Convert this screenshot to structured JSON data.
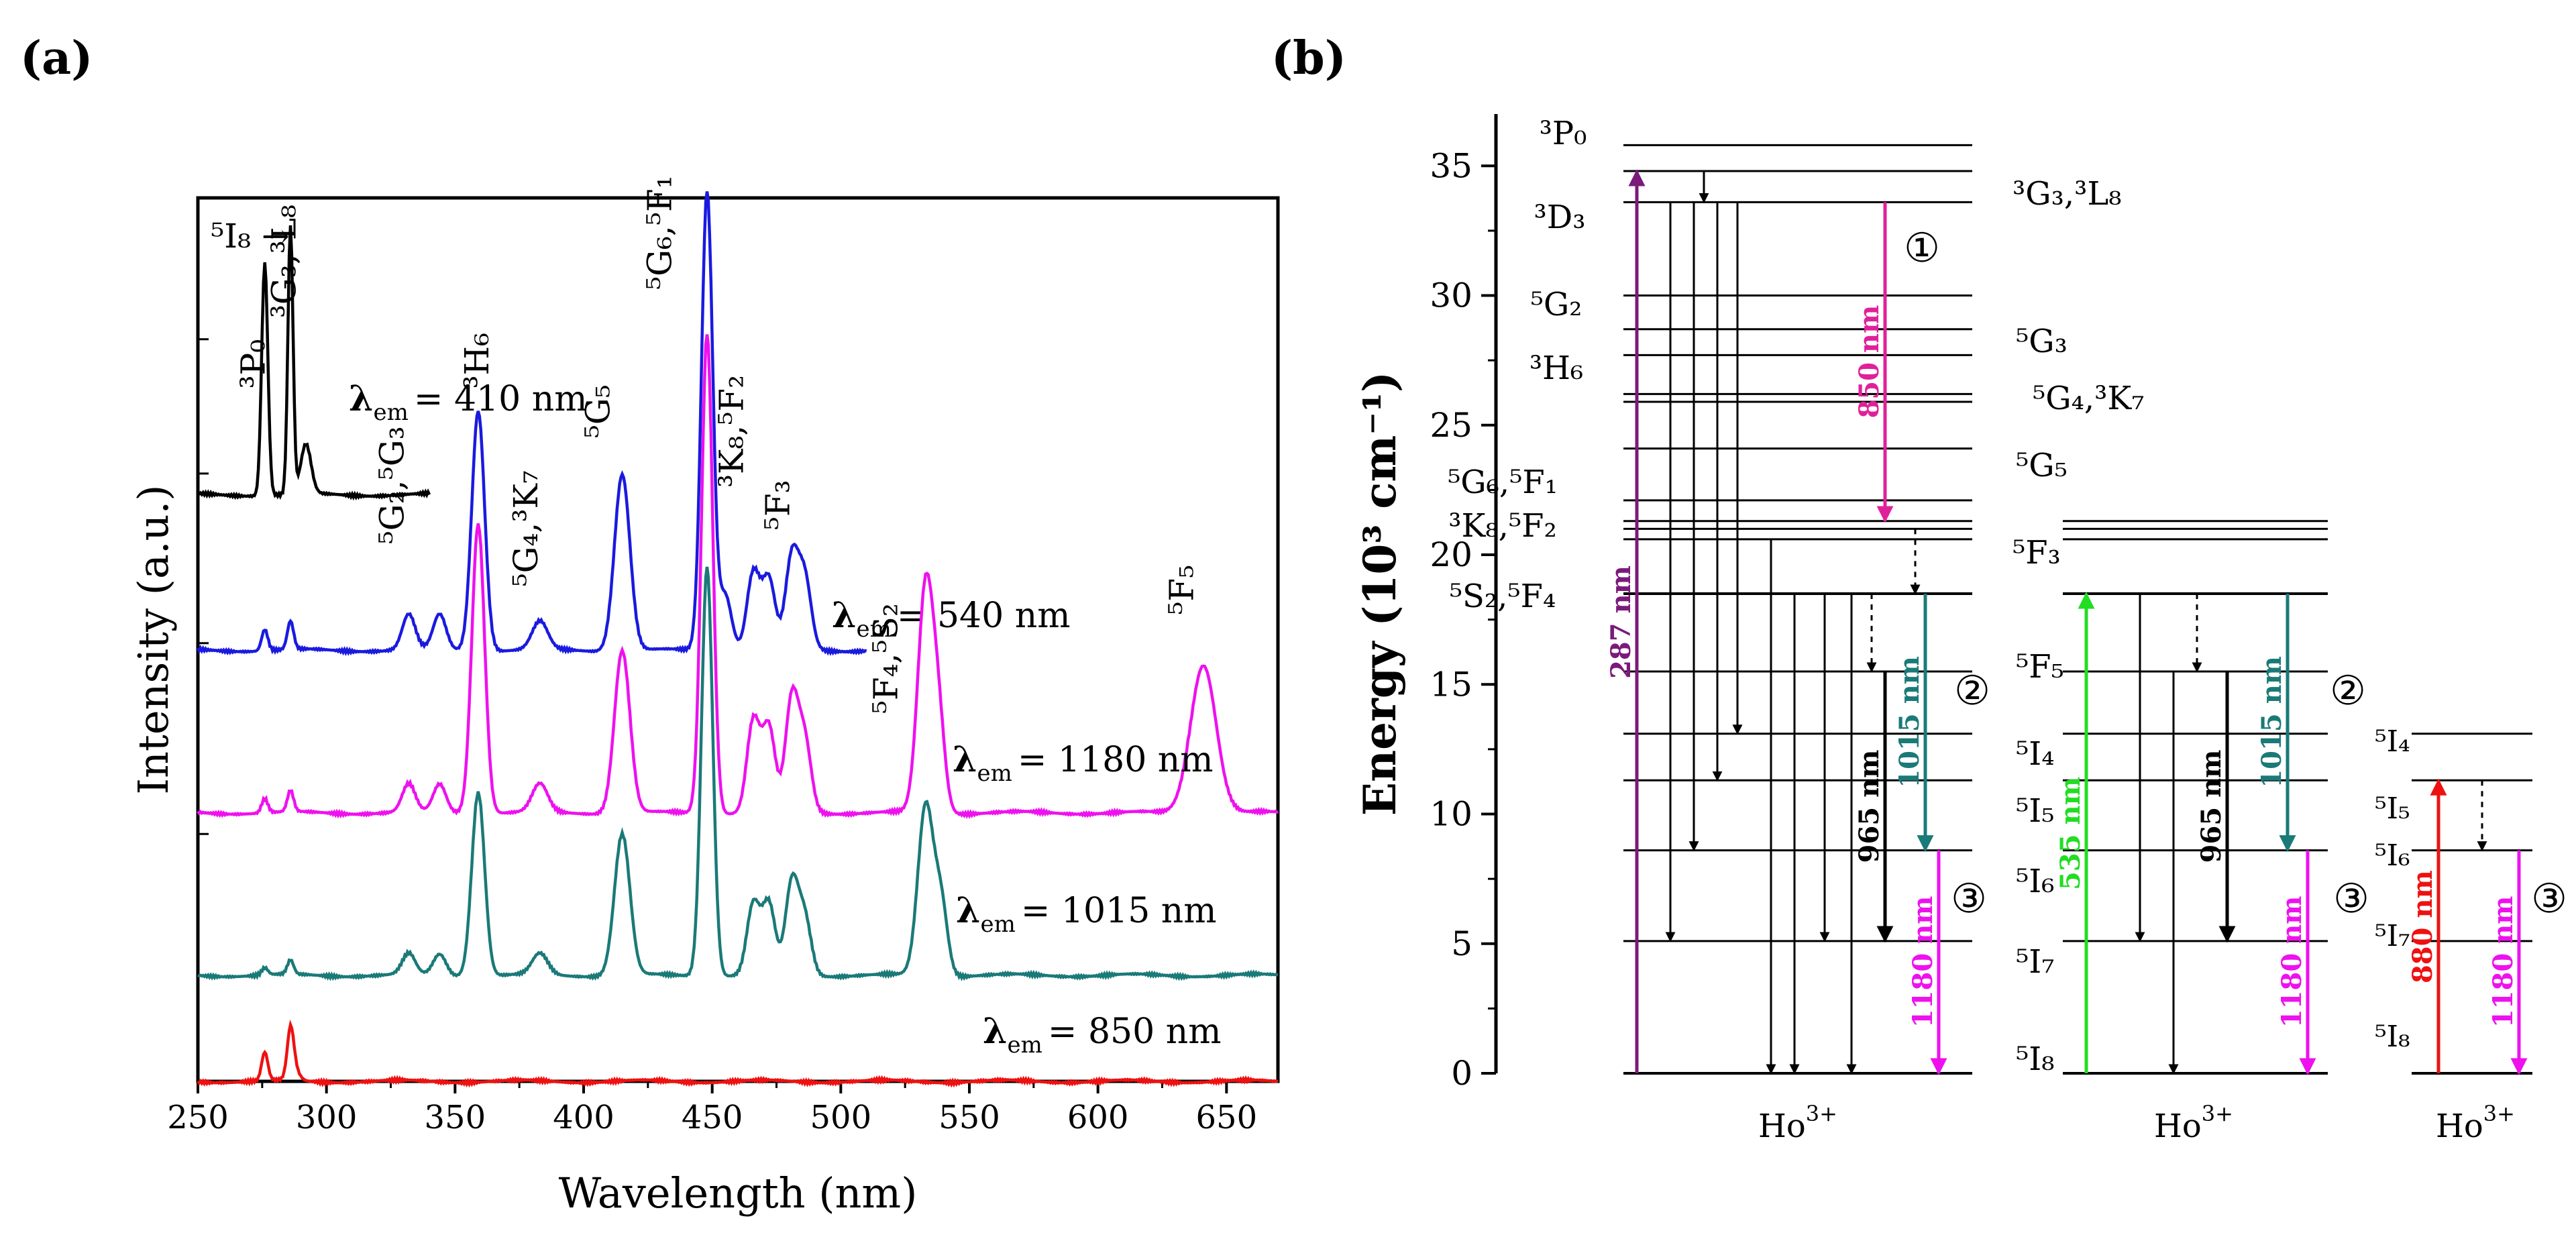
{
  "panel_a_label": "(a)",
  "panel_b_label": "(b)",
  "chart_data": [
    {
      "type": "line",
      "panel": "(a)",
      "title": "",
      "xlabel": "Wavelength (nm)",
      "ylabel": "Intensity (a.u.)",
      "xlim": [
        250,
        670
      ],
      "x_ticks": [
        "250",
        "300",
        "350",
        "400",
        "450",
        "500",
        "550",
        "600",
        "650"
      ],
      "series": [
        {
          "name": "λem = 410 nm",
          "label_main": "λ",
          "label_sub": "em",
          "label_rest": "= 410 nm",
          "color": "#000000",
          "offset": 0.83,
          "x_end": 340,
          "peaks": [
            [
              276,
              0.33,
              1.2
            ],
            [
              286,
              0.38,
              1.0
            ],
            [
              292,
              0.07,
              2.0
            ]
          ]
        },
        {
          "name": "λem = 540 nm",
          "label_main": "λ",
          "label_sub": "em",
          "label_rest": "= 540 nm",
          "color": "#1a1adf",
          "offset": 0.61,
          "x_end": 510,
          "peaks": [
            [
              276,
              0.03,
              1.2
            ],
            [
              286,
              0.04,
              1.2
            ],
            [
              332,
              0.05,
              2.5
            ],
            [
              344,
              0.05,
              2.5
            ],
            [
              359,
              0.34,
              2.5
            ],
            [
              383,
              0.04,
              3
            ],
            [
              415,
              0.25,
              3
            ],
            [
              448,
              0.65,
              2.2
            ],
            [
              455,
              0.08,
              2.5
            ],
            [
              466,
              0.11,
              2.5
            ],
            [
              472,
              0.1,
              2.5
            ],
            [
              481,
              0.13,
              2.5
            ],
            [
              486,
              0.1,
              2.5
            ]
          ]
        },
        {
          "name": "λem = 1180 nm",
          "label_main": "λ",
          "label_sub": "em",
          "label_rest": "= 1180 nm",
          "color": "#ee11ee",
          "offset": 0.38,
          "x_end": 670,
          "peaks": [
            [
              276,
              0.02,
              1.2
            ],
            [
              286,
              0.03,
              1.2
            ],
            [
              332,
              0.04,
              2.5
            ],
            [
              344,
              0.04,
              2.5
            ],
            [
              359,
              0.41,
              2.5
            ],
            [
              383,
              0.04,
              3
            ],
            [
              415,
              0.23,
              3
            ],
            [
              448,
              0.68,
              2.2
            ],
            [
              466,
              0.13,
              2.5
            ],
            [
              472,
              0.12,
              2.5
            ],
            [
              481,
              0.16,
              2.5
            ],
            [
              486,
              0.1,
              2.5
            ],
            [
              533,
              0.32,
              3
            ],
            [
              538,
              0.12,
              2.5
            ],
            [
              641,
              0.21,
              5
            ]
          ]
        },
        {
          "name": "λem = 1015 nm",
          "label_main": "λ",
          "label_sub": "em",
          "label_rest": "= 1015 nm",
          "color": "#1a7a78",
          "offset": 0.15,
          "x_end": 670,
          "peaks": [
            [
              276,
              0.01,
              1.2
            ],
            [
              286,
              0.02,
              1.2
            ],
            [
              332,
              0.03,
              2.5
            ],
            [
              344,
              0.03,
              2.5
            ],
            [
              359,
              0.26,
              2.5
            ],
            [
              383,
              0.03,
              3
            ],
            [
              415,
              0.2,
              3
            ],
            [
              448,
              0.58,
              2.2
            ],
            [
              466,
              0.1,
              2.5
            ],
            [
              472,
              0.1,
              2.5
            ],
            [
              481,
              0.13,
              2.5
            ],
            [
              486,
              0.08,
              2.5
            ],
            [
              533,
              0.24,
              3
            ],
            [
              539,
              0.1,
              2.5
            ]
          ]
        },
        {
          "name": "λem = 850 nm",
          "label_main": "λ",
          "label_sub": "em",
          "label_rest": "= 850 nm",
          "color": "#ee1111",
          "offset": 0.0,
          "x_end": 670,
          "peaks": [
            [
              276,
              0.04,
              1.2
            ],
            [
              286,
              0.06,
              1.2
            ],
            [
              287,
              0.02,
              2.0
            ]
          ]
        }
      ],
      "annotations": [
        {
          "text": "⁵I₈ →",
          "x": 255,
          "y": 1.18
        },
        {
          "text": "³P₀",
          "x": 276,
          "y": 0.98
        },
        {
          "text": "³G₃,³L₈",
          "x": 288,
          "y": 1.08
        },
        {
          "text": "⁵G₂,⁵G₃",
          "x": 330,
          "y": 0.76
        },
        {
          "text": "³H₆",
          "x": 363,
          "y": 0.98
        },
        {
          "text": "⁵G₄,³K₇",
          "x": 382,
          "y": 0.7
        },
        {
          "text": "⁵G₅",
          "x": 410,
          "y": 0.91
        },
        {
          "text": "⁵G₆,⁵F₁",
          "x": 434,
          "y": 1.12
        },
        {
          "text": "³K₈,⁵F₂",
          "x": 462,
          "y": 0.84
        },
        {
          "text": "⁵F₃",
          "x": 480,
          "y": 0.78
        },
        {
          "text": "⁵F₄,⁵S₂",
          "x": 522,
          "y": 0.52
        },
        {
          "text": "⁵F₅",
          "x": 637,
          "y": 0.66
        }
      ]
    },
    {
      "type": "energy-level-diagram",
      "panel": "(b)",
      "ylabel": "Energy (10³ cm⁻¹)",
      "ylim": [
        0,
        37
      ],
      "y_ticks": [
        "0",
        "5",
        "10",
        "15",
        "20",
        "25",
        "30",
        "35"
      ],
      "ion_label": "Ho",
      "ion_charge": "3+",
      "levels": [
        0,
        5.1,
        8.6,
        11.3,
        13.1,
        15.5,
        18.5,
        20.6,
        21.0,
        21.3,
        22.1,
        24.1,
        25.9,
        26.2,
        27.7,
        28.7,
        30.0,
        33.6,
        34.8,
        35.8
      ],
      "level_labels_left": [
        "³P₀",
        "³D₃",
        "⁵G₂",
        "³H₆",
        "⁵G₆,⁵F₁",
        "³K₈,⁵F₂",
        "⁵S₂,⁵F₄"
      ],
      "level_labels_right": [
        "³G₃,³L₈",
        "⁵G₃",
        "⁵G₄,³K₇",
        "⁵G₅",
        "⁵F₃",
        "⁵F₅",
        "⁵I₄",
        "⁵I₅",
        "⁵I₆",
        "⁵I₇",
        "⁵I₈"
      ],
      "transitions": [
        {
          "label": "287 nm",
          "color": "#7b1a7b",
          "from": 0,
          "to": 34.8,
          "kind": "excitation"
        },
        {
          "label": "850 nm",
          "color": "#e0209a",
          "from": 33.6,
          "to": 21.3,
          "kind": "emission"
        },
        {
          "label": "1015 nm",
          "color": "#1a7a78",
          "from": 18.5,
          "to": 8.6,
          "kind": "emission"
        },
        {
          "label": "965 nm",
          "color": "#000000",
          "from": 15.5,
          "to": 5.1,
          "kind": "emission"
        },
        {
          "label": "1180 nm",
          "color": "#ee11ee",
          "from": 8.6,
          "to": 0,
          "kind": "emission"
        },
        {
          "label": "535 nm",
          "color": "#22dd22",
          "from": 0,
          "to": 18.5,
          "kind": "excitation"
        },
        {
          "label": "880 nm",
          "color": "#ee1111",
          "from": 0,
          "to": 11.3,
          "kind": "excitation"
        }
      ],
      "markers": [
        "①",
        "②",
        "③"
      ]
    }
  ]
}
